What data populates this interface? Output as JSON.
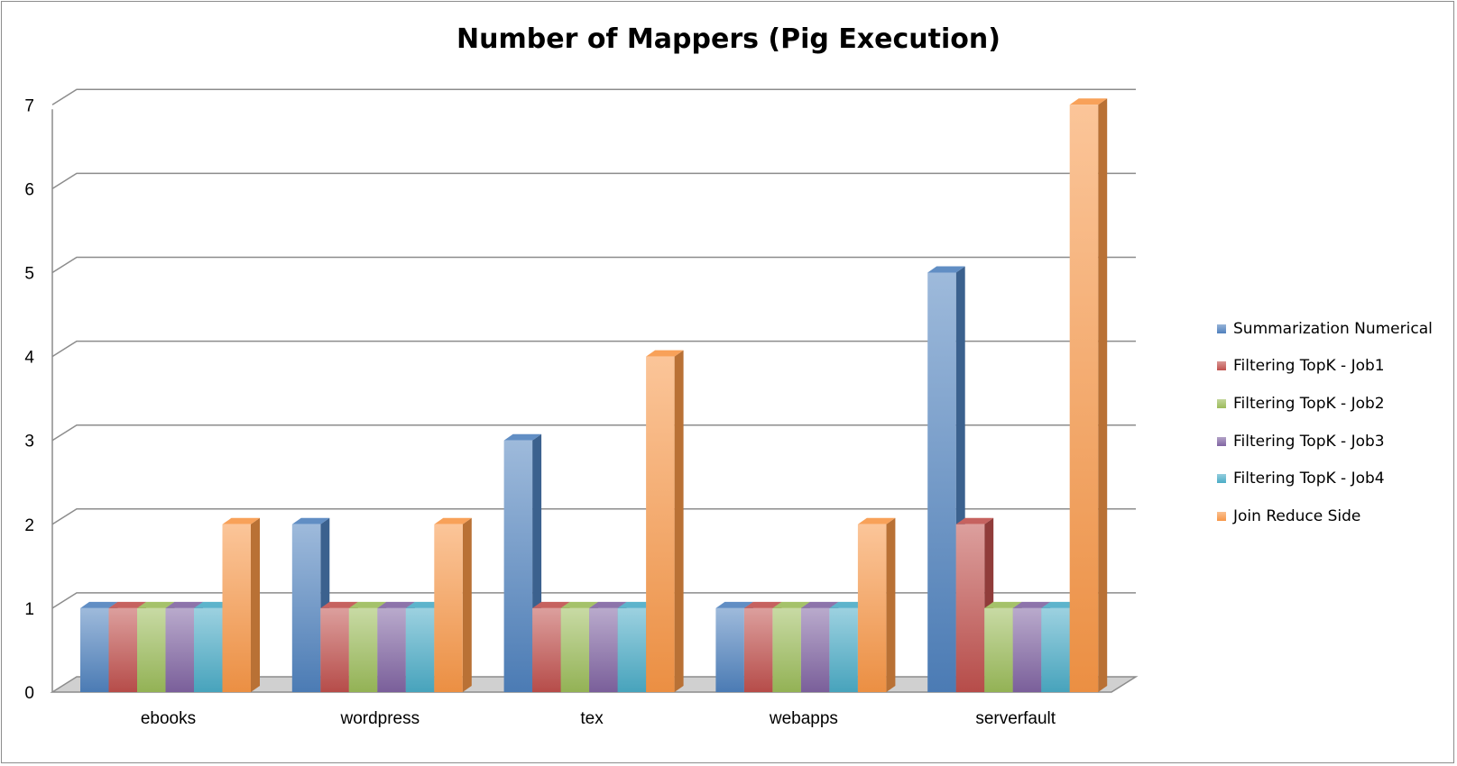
{
  "chart_data": {
    "type": "bar",
    "title": "Number of Mappers (Pig Execution)",
    "xlabel": "",
    "ylabel": "",
    "ylim": [
      0,
      7
    ],
    "yticks": [
      "0",
      "1",
      "2",
      "3",
      "4",
      "5",
      "6",
      "7"
    ],
    "grid": true,
    "style": "3d-clustered-column",
    "legend_position": "right",
    "categories": [
      "ebooks",
      "wordpress",
      "tex",
      "webapps",
      "serverfault"
    ],
    "series": [
      {
        "name": "Summarization Numerical",
        "color": "#4f81bd",
        "values": [
          1,
          2,
          3,
          1,
          5
        ]
      },
      {
        "name": "Filtering TopK - Job1",
        "color": "#c0504d",
        "values": [
          1,
          1,
          1,
          1,
          2
        ]
      },
      {
        "name": "Filtering TopK - Job2",
        "color": "#9bbb59",
        "values": [
          1,
          1,
          1,
          1,
          1
        ]
      },
      {
        "name": "Filtering TopK - Job3",
        "color": "#8064a2",
        "values": [
          1,
          1,
          1,
          1,
          1
        ]
      },
      {
        "name": "Filtering TopK - Job4",
        "color": "#4bacc6",
        "values": [
          1,
          1,
          1,
          1,
          1
        ]
      },
      {
        "name": "Join Reduce Side",
        "color": "#f79646",
        "values": [
          2,
          2,
          4,
          2,
          7
        ]
      }
    ]
  }
}
